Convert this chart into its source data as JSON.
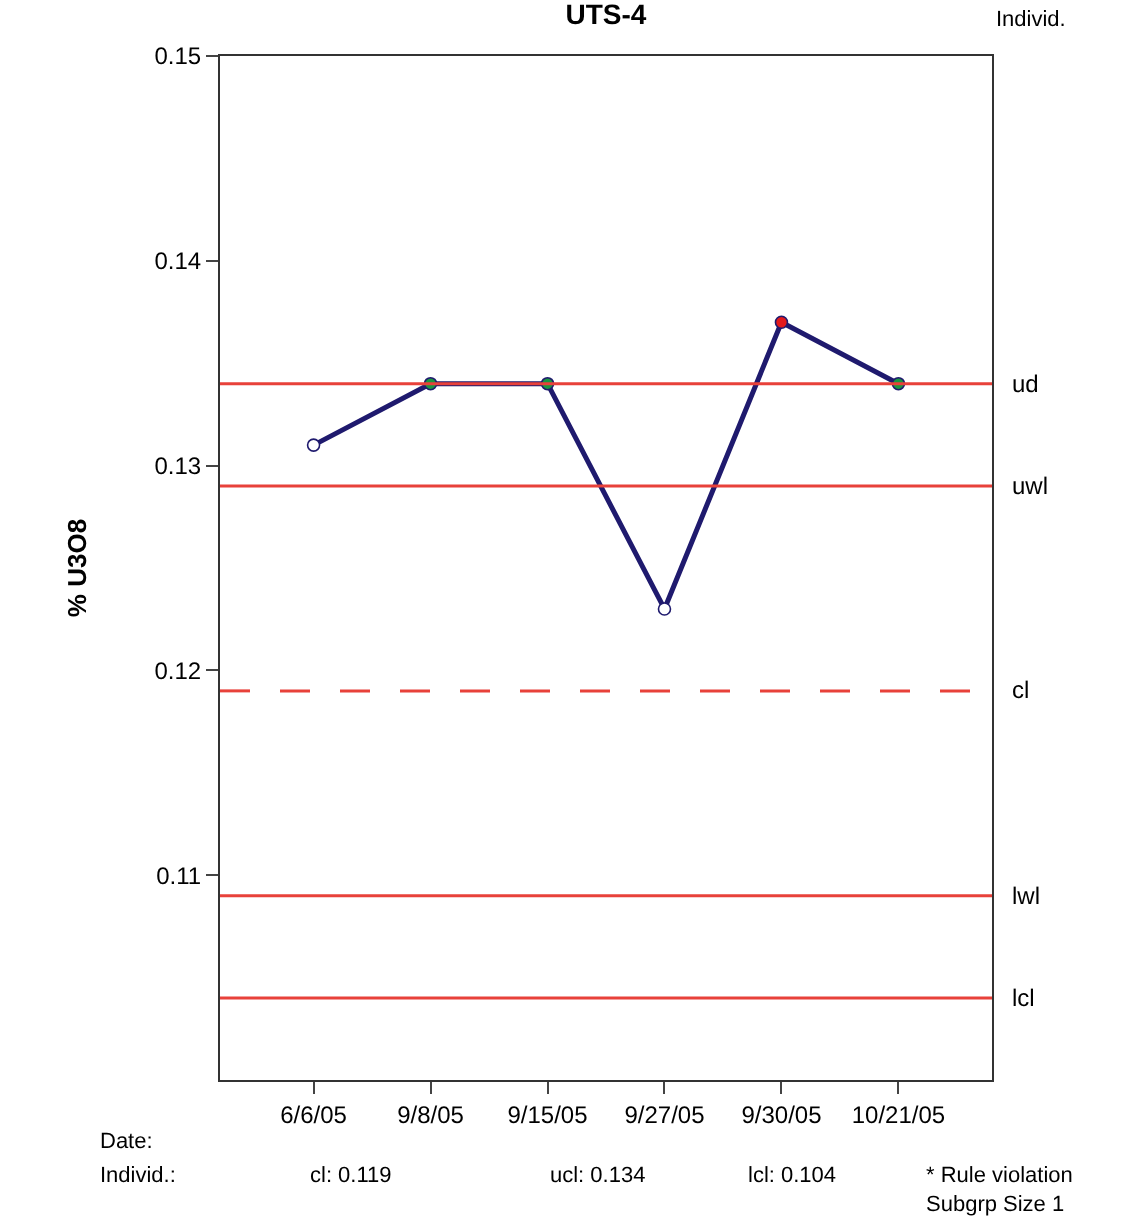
{
  "chart_data": {
    "type": "line",
    "title": "UTS-4",
    "ylabel": "% U3O8",
    "categories": [
      "6/6/05",
      "9/8/05",
      "9/15/05",
      "9/27/05",
      "9/30/05",
      "10/21/05"
    ],
    "series": [
      {
        "color": "#1f1a6e",
        "values": [
          0.131,
          0.134,
          0.134,
          0.123,
          0.137,
          0.134
        ],
        "colors": [
          "#ffffff",
          "#1a9641",
          "#1a9641",
          "#ffffff",
          "#e31a1c",
          "#1a9641"
        ]
      }
    ],
    "ylim": [
      0.1,
      0.15
    ],
    "yticks": [
      0.11,
      0.12,
      0.13,
      0.14,
      0.15
    ],
    "ref_lines": [
      {
        "axis": "y",
        "value": 0.134,
        "label": "ud",
        "color": "#e8413a",
        "line_style": "solid"
      },
      {
        "axis": "y",
        "value": 0.129,
        "label": "uwl",
        "color": "#e8413a",
        "line_style": "solid"
      },
      {
        "axis": "y",
        "value": 0.119,
        "label": "cl",
        "color": "#e8413a",
        "line_style": "dashed"
      },
      {
        "axis": "y",
        "value": 0.109,
        "label": "lwl",
        "color": "#e8413a",
        "line_style": "solid"
      },
      {
        "axis": "y",
        "value": 0.104,
        "label": "lcl",
        "color": "#e8413a",
        "line_style": "solid"
      }
    ],
    "annotations": [
      "Individ.",
      "Date:",
      "Individ.:",
      "cl: 0.119",
      "ucl: 0.134",
      "lcl: 0.104",
      "* Rule violation\nSubgrp Size 1"
    ],
    "marker": "circle",
    "line_style": "solid"
  }
}
